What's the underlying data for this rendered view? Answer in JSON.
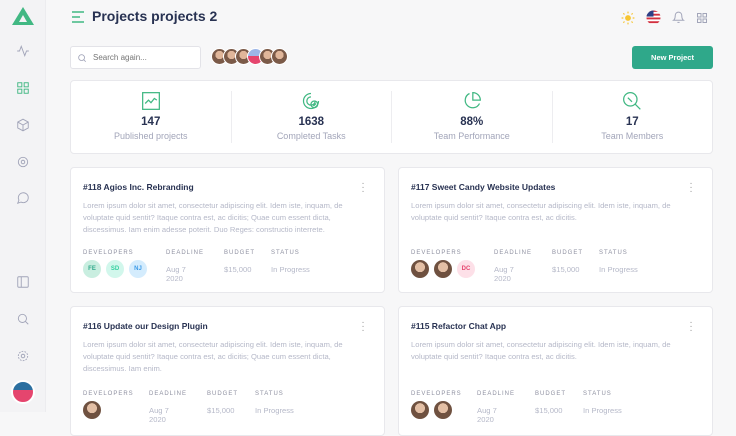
{
  "header": {
    "title": "Projects projects 2"
  },
  "search": {
    "placeholder": "Search again..."
  },
  "toolbar": {
    "new_project": "New Project"
  },
  "colors": {
    "accent": "#41b883",
    "button": "#2fa88a"
  },
  "sidebar": {
    "items": [
      "logo",
      "activity-icon",
      "grid-icon",
      "box-icon",
      "cpu-icon",
      "message-icon",
      "sidebar-icon",
      "search-icon",
      "settings-icon"
    ]
  },
  "stats": [
    {
      "value": "147",
      "label": "Published projects",
      "icon": "chart-icon"
    },
    {
      "value": "1638",
      "label": "Completed Tasks",
      "icon": "target-check-icon"
    },
    {
      "value": "88%",
      "label": "Team Performance",
      "icon": "pie-icon"
    },
    {
      "value": "17",
      "label": "Team Members",
      "icon": "user-search-icon"
    }
  ],
  "labels": {
    "developers": "DEVELOPERS",
    "deadline": "DEADLINE",
    "budget": "BUDGET",
    "status": "STATUS"
  },
  "projects": [
    {
      "title": "#118 Agios Inc. Rebranding",
      "desc": "Lorem ipsum dolor sit amet, consectetur adipiscing elit. Idem iste, inquam, de voluptate quid sentit? Itaque contra est, ac dicitis; Quae cum essent dicta, discessimus. Iam enim adesse poterit. Duo Reges: constructio interrete.",
      "devs": [
        "FE",
        "SD",
        "NJ"
      ],
      "deadline": "Aug 7 2020",
      "budget": "$15,000",
      "status": "In Progress"
    },
    {
      "title": "#117 Sweet Candy Website Updates",
      "desc": "Lorem ipsum dolor sit amet, consectetur adipiscing elit. Idem iste, inquam, de voluptate quid sentit? Itaque contra est, ac dicitis.",
      "devs": [
        "photo",
        "photo",
        "DC"
      ],
      "deadline": "Aug 7 2020",
      "budget": "$15,000",
      "status": "In Progress"
    },
    {
      "title": "#116 Update our Design Plugin",
      "desc": "Lorem ipsum dolor sit amet, consectetur adipiscing elit. Idem iste, inquam, de voluptate quid sentit? Itaque contra est, ac dicitis; Quae cum essent dicta, discessimus. Iam enim.",
      "devs": [
        "photo"
      ],
      "deadline": "Aug 7 2020",
      "budget": "$15,000",
      "status": "In Progress"
    },
    {
      "title": "#115 Refactor Chat App",
      "desc": "Lorem ipsum dolor sit amet, consectetur adipiscing elit. Idem iste, inquam, de voluptate quid sentit? Itaque contra est, ac dicitis.",
      "devs": [
        "photo",
        "photo"
      ],
      "deadline": "Aug 7 2020",
      "budget": "$15,000",
      "status": "In Progress"
    }
  ]
}
